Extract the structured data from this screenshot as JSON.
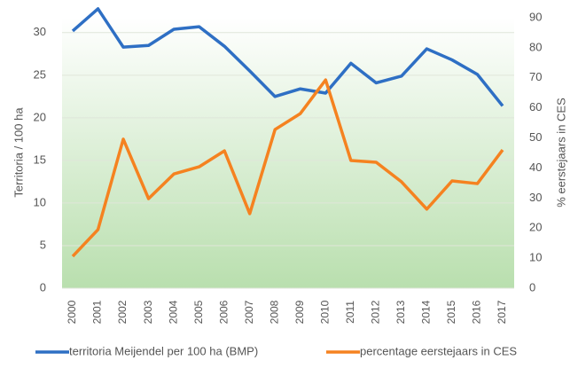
{
  "chart_data": {
    "type": "line",
    "categories": [
      "2000",
      "2001",
      "2002",
      "2003",
      "2004",
      "2005",
      "2006",
      "2007",
      "2008",
      "2009",
      "2010",
      "2011",
      "2012",
      "2013",
      "2014",
      "2015",
      "2016",
      "2017"
    ],
    "y_label": "Territoria / 100 ha",
    "y2_label": "% eerstejaars in CES",
    "ylim": [
      0,
      31.75
    ],
    "yticks": [
      0,
      5,
      10,
      15,
      20,
      25,
      30
    ],
    "y2lim": [
      0,
      90
    ],
    "y2ticks": [
      0,
      10,
      20,
      30,
      40,
      50,
      60,
      70,
      80,
      90
    ],
    "grid": true,
    "legend": "bottom",
    "series": [
      {
        "name": "territoria Meijendel per 100 ha (BMP)",
        "color": "#2e6fc4",
        "values": [
          30.2,
          32.8,
          28.3,
          28.5,
          30.4,
          30.7,
          28.4,
          25.5,
          22.5,
          23.4,
          22.9,
          26.4,
          24.1,
          24.9,
          28.1,
          26.8,
          25.1,
          21.4
        ]
      },
      {
        "name": "percentage eerstejaars in CES",
        "color": "#f58220",
        "axis": "y2",
        "values": [
          10.6,
          19.5,
          49.6,
          29.8,
          38,
          40.4,
          45.7,
          24.8,
          52.8,
          58.1,
          69.3,
          42.5,
          41.9,
          35.4,
          26.3,
          35.7,
          34.8,
          46
        ]
      }
    ]
  }
}
